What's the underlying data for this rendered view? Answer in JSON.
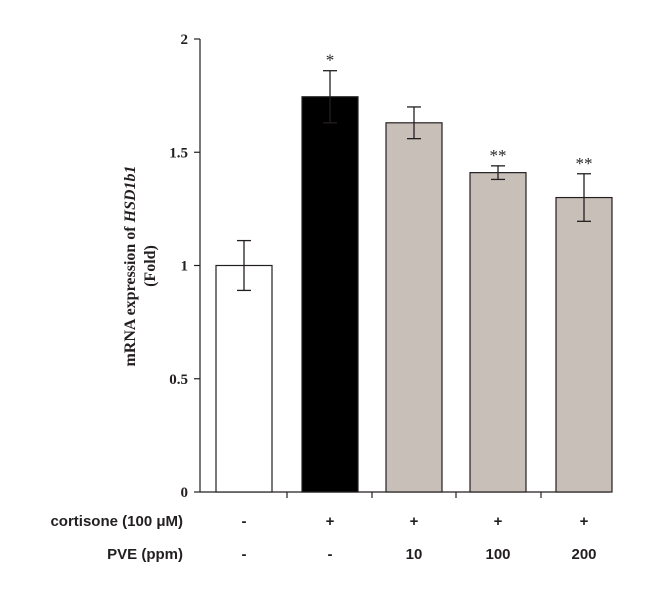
{
  "chart_data": {
    "type": "bar",
    "ylabel_prefix": "mRNA expression of ",
    "ylabel_gene": "HSD1b1",
    "ylabel_unit": "(Fold)",
    "ylim": [
      0,
      2
    ],
    "yticks": [
      0,
      0.5,
      1,
      1.5,
      2
    ],
    "ytick_labels": [
      "0",
      "0.5",
      "1",
      "1.5",
      "2"
    ],
    "values": [
      1.0,
      1.745,
      1.63,
      1.41,
      1.3
    ],
    "errors": [
      0.11,
      0.115,
      0.07,
      0.03,
      0.105
    ],
    "bar_colors": [
      "#ffffff",
      "#000000",
      "#c8bfb9",
      "#c8bfb9",
      "#c8bfb9"
    ],
    "significance": [
      "",
      "*",
      "",
      "**",
      "**"
    ],
    "treatment_rows": [
      {
        "label": "cortisone (100 μM)",
        "values": [
          "-",
          "+",
          "+",
          "+",
          "+"
        ]
      },
      {
        "label": "PVE (ppm)",
        "values": [
          "-",
          "-",
          "10",
          "100",
          "200"
        ]
      }
    ],
    "grid": false,
    "legend": "none"
  }
}
